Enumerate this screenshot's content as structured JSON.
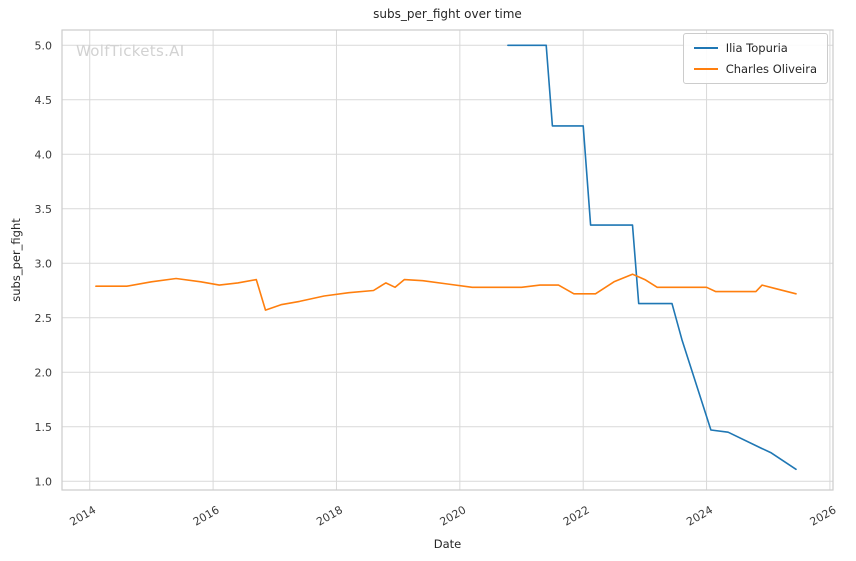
{
  "watermark": "WolfTickets.AI",
  "chart_data": {
    "type": "line",
    "title": "subs_per_fight over time",
    "xlabel": "Date",
    "ylabel": "subs_per_fight",
    "grid": true,
    "legend_position": "upper right",
    "xlim": [
      2013.55,
      2026.05
    ],
    "ylim": [
      0.92,
      5.14
    ],
    "x_tick_values": [
      2014,
      2016,
      2018,
      2020,
      2022,
      2024,
      2026
    ],
    "x_tick_labels": [
      "2014",
      "2016",
      "2018",
      "2020",
      "2022",
      "2024",
      "2026"
    ],
    "y_tick_values": [
      1.0,
      1.5,
      2.0,
      2.5,
      3.0,
      3.5,
      4.0,
      4.5,
      5.0
    ],
    "y_tick_labels": [
      "1.0",
      "1.5",
      "2.0",
      "2.5",
      "3.0",
      "3.5",
      "4.0",
      "4.5",
      "5.0"
    ],
    "grid_color": "#d9d9d9",
    "spine_color": "#cccccc",
    "tick_label_color": "#3a3a3a",
    "series": [
      {
        "name": "Ilia Topuria",
        "color": "#1f77b4",
        "points": [
          [
            2020.78,
            5.0
          ],
          [
            2021.4,
            5.0
          ],
          [
            2021.5,
            4.26
          ],
          [
            2022.0,
            4.26
          ],
          [
            2022.12,
            3.35
          ],
          [
            2022.8,
            3.35
          ],
          [
            2022.9,
            2.63
          ],
          [
            2023.44,
            2.63
          ],
          [
            2023.6,
            2.3
          ],
          [
            2024.07,
            1.47
          ],
          [
            2024.35,
            1.45
          ],
          [
            2024.9,
            1.3
          ],
          [
            2025.05,
            1.26
          ],
          [
            2025.45,
            1.11
          ]
        ]
      },
      {
        "name": "Charles Oliveira",
        "color": "#ff7f0e",
        "points": [
          [
            2014.1,
            2.79
          ],
          [
            2014.6,
            2.79
          ],
          [
            2015.0,
            2.83
          ],
          [
            2015.4,
            2.86
          ],
          [
            2015.8,
            2.83
          ],
          [
            2016.1,
            2.8
          ],
          [
            2016.4,
            2.82
          ],
          [
            2016.7,
            2.85
          ],
          [
            2016.85,
            2.57
          ],
          [
            2017.1,
            2.62
          ],
          [
            2017.4,
            2.65
          ],
          [
            2017.8,
            2.7
          ],
          [
            2018.2,
            2.73
          ],
          [
            2018.6,
            2.75
          ],
          [
            2018.8,
            2.82
          ],
          [
            2018.95,
            2.78
          ],
          [
            2019.1,
            2.85
          ],
          [
            2019.4,
            2.84
          ],
          [
            2019.8,
            2.81
          ],
          [
            2020.2,
            2.78
          ],
          [
            2020.6,
            2.78
          ],
          [
            2021.0,
            2.78
          ],
          [
            2021.3,
            2.8
          ],
          [
            2021.6,
            2.8
          ],
          [
            2021.85,
            2.72
          ],
          [
            2022.2,
            2.72
          ],
          [
            2022.5,
            2.83
          ],
          [
            2022.8,
            2.9
          ],
          [
            2023.0,
            2.85
          ],
          [
            2023.2,
            2.78
          ],
          [
            2023.6,
            2.78
          ],
          [
            2024.0,
            2.78
          ],
          [
            2024.15,
            2.74
          ],
          [
            2024.5,
            2.74
          ],
          [
            2024.8,
            2.74
          ],
          [
            2024.9,
            2.8
          ],
          [
            2025.1,
            2.77
          ],
          [
            2025.45,
            2.72
          ]
        ]
      }
    ]
  }
}
